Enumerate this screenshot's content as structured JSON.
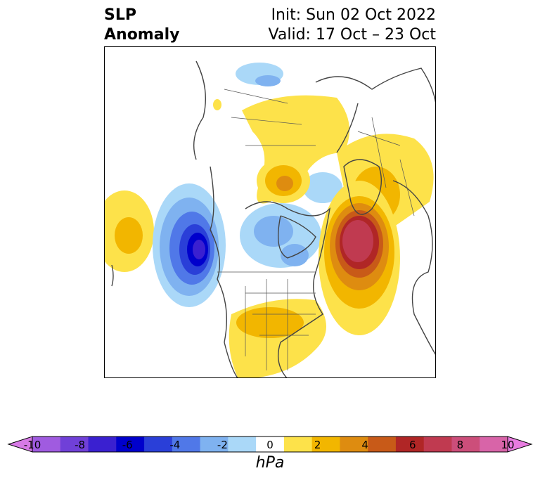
{
  "title": {
    "left_line1": "SLP",
    "left_line2": "Anomaly",
    "right_line1": "Init: Sun 02 Oct 2022",
    "right_line2": "Valid: 17 Oct – 23 Oct"
  },
  "colorbar": {
    "label": "hPa",
    "ticks": [
      "-10",
      "-8",
      "-6",
      "-4",
      "-2",
      "0",
      "2",
      "4",
      "6",
      "8",
      "10"
    ],
    "colors": [
      "#d77ae6",
      "#a05be0",
      "#7040d8",
      "#3a20d0",
      "#0000cc",
      "#2a3fd8",
      "#5078e8",
      "#7fb2f0",
      "#aad8f8",
      "#ffffff",
      "#fde24a",
      "#f2b600",
      "#de8c10",
      "#c85a18",
      "#b02626",
      "#c03a50",
      "#cc4e7a",
      "#d864a8",
      "#e87ce0"
    ]
  },
  "map": {
    "region": "North America / Atlantic / Europe polar projection",
    "palette": {
      "pos1": "#fde24a",
      "pos2": "#f2b600",
      "pos3": "#de8c10",
      "pos4": "#c85a18",
      "pos5": "#b02626",
      "pos6": "#c03a50",
      "neg1": "#aad8f8",
      "neg2": "#7fb2f0",
      "neg3": "#5078e8",
      "neg4": "#2a3fd8",
      "neg5": "#0000cc",
      "neg6": "#3a20d0"
    }
  }
}
